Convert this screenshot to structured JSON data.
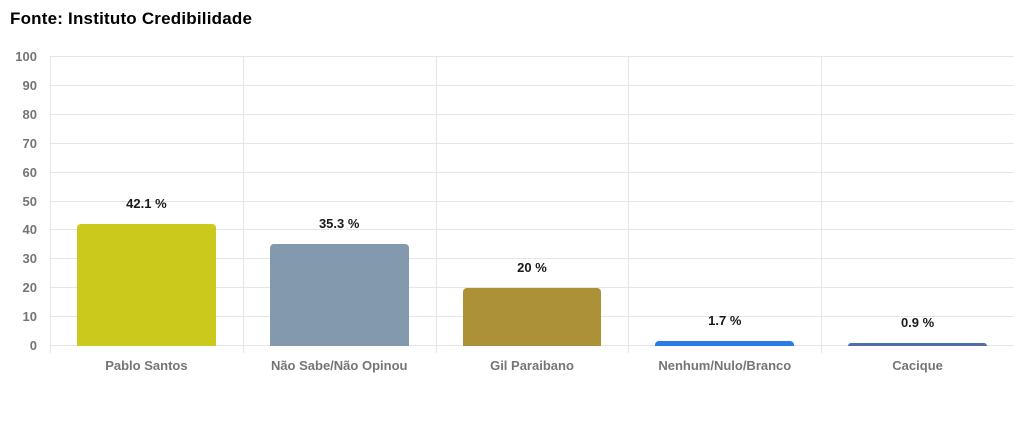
{
  "header": {
    "title": "Fonte: Instituto Credibilidade"
  },
  "chart_data": {
    "type": "bar",
    "title": "Fonte: Instituto Credibilidade",
    "categories": [
      "Pablo Santos",
      "Não Sabe/Não Opinou",
      "Gil Paraibano",
      "Nenhum/Nulo/Branco",
      "Cacique"
    ],
    "values": [
      42.1,
      35.3,
      20,
      1.7,
      0.9
    ],
    "value_labels": [
      "42.1 %",
      "35.3 %",
      "20 %",
      "1.7 %",
      "0.9 %"
    ],
    "bar_colors": [
      "#cbc91c",
      "#8399ae",
      "#ac9136",
      "#2b7ce9",
      "#4e6fae"
    ],
    "xlabel": "",
    "ylabel": "",
    "ylim": [
      0,
      100
    ],
    "yticks": [
      0,
      10,
      20,
      30,
      40,
      50,
      60,
      70,
      80,
      90,
      100
    ],
    "grid": true,
    "legend": "none",
    "colors": {
      "axis_text": "#757575",
      "value_text": "#1a1a1a",
      "gridline": "#e6e6e6",
      "title_text": "#000000",
      "background": "#ffffff"
    }
  }
}
